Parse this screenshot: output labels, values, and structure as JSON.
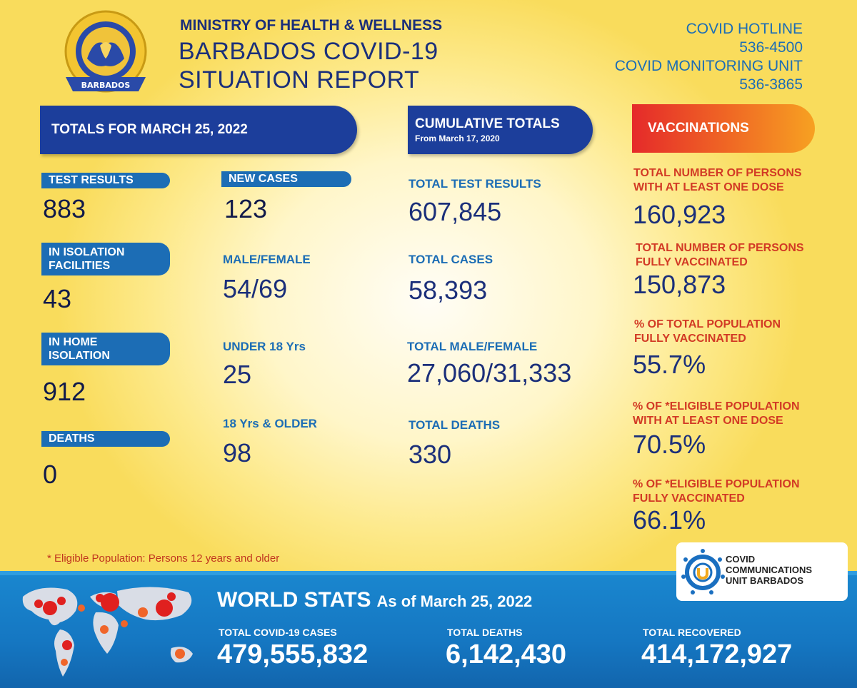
{
  "header": {
    "logo_text_top": "MINISTRY OF HEALTH AND WELLNESS",
    "logo_text_bottom": "BARBADOS",
    "ministry": "MINISTRY OF HEALTH & WELLNESS",
    "title_line1": "BARBADOS COVID-19",
    "title_line2": "SITUATION REPORT",
    "hotline_label": "COVID HOTLINE",
    "hotline_number": "536-4500",
    "monitoring_label": "COVID MONITORING UNIT",
    "monitoring_number": "536-3865"
  },
  "totals": {
    "banner": "TOTALS FOR MARCH 25, 2022",
    "test_results_label": "TEST RESULTS",
    "test_results": "883",
    "isolation_facilities_label_1": "IN ISOLATION",
    "isolation_facilities_label_2": "FACILITIES",
    "isolation_facilities": "43",
    "home_isolation_label_1": "IN HOME",
    "home_isolation_label_2": "ISOLATION",
    "home_isolation": "912",
    "deaths_label": "DEATHS",
    "deaths": "0",
    "new_cases_label": "NEW CASES",
    "new_cases": "123",
    "male_female_label": "MALE/FEMALE",
    "male_female": "54/69",
    "under_18_label": "UNDER 18 Yrs",
    "under_18": "25",
    "over_18_label": "18 Yrs & OLDER",
    "over_18": "98"
  },
  "cumulative": {
    "banner": "CUMULATIVE TOTALS",
    "banner_sub": "From March 17, 2020",
    "test_results_label": "TOTAL TEST RESULTS",
    "test_results": "607,845",
    "cases_label": "TOTAL CASES",
    "cases": "58,393",
    "male_female_label": "TOTAL MALE/FEMALE",
    "male_female": "27,060/31,333",
    "deaths_label": "TOTAL DEATHS",
    "deaths": "330"
  },
  "vaccinations": {
    "banner": "VACCINATIONS",
    "one_dose_label_1": "TOTAL NUMBER OF PERSONS",
    "one_dose_label_2": "WITH AT LEAST ONE DOSE",
    "one_dose": "160,923",
    "fully_label_1": "TOTAL NUMBER OF PERSONS",
    "fully_label_2": "FULLY VACCINATED",
    "fully": "150,873",
    "pct_pop_label_1": "% OF TOTAL POPULATION",
    "pct_pop_label_2": "FULLY VACCINATED",
    "pct_pop": "55.7%",
    "pct_elig_one_label_1": "% OF *ELIGIBLE POPULATION",
    "pct_elig_one_label_2": "WITH AT LEAST ONE DOSE",
    "pct_elig_one": "70.5%",
    "pct_elig_full_label_1": "% OF *ELIGIBLE POPULATION",
    "pct_elig_full_label_2": "FULLY VACCINATED",
    "pct_elig_full": "66.1%"
  },
  "footnote": "* Eligible Population: Persons 12 years and older",
  "ccu": {
    "line1": "COVID",
    "line2": "COMMUNICATIONS",
    "line3": "UNIT BARBADOS"
  },
  "world": {
    "title": "WORLD STATS",
    "subtitle": "As of March 25, 2022",
    "cases_label": "TOTAL COVID-19 CASES",
    "cases": "479,555,832",
    "deaths_label": "TOTAL DEATHS",
    "deaths": "6,142,430",
    "recovered_label": "TOTAL RECOVERED",
    "recovered": "414,172,927"
  },
  "colors": {
    "navy": "#1b2f7a",
    "banner_blue": "#1c3e9b",
    "label_blue": "#1c6db5",
    "vaccination_red": "#d23a25",
    "vaccination_orange": "#f7a122",
    "world_blue": "#1577c2"
  }
}
